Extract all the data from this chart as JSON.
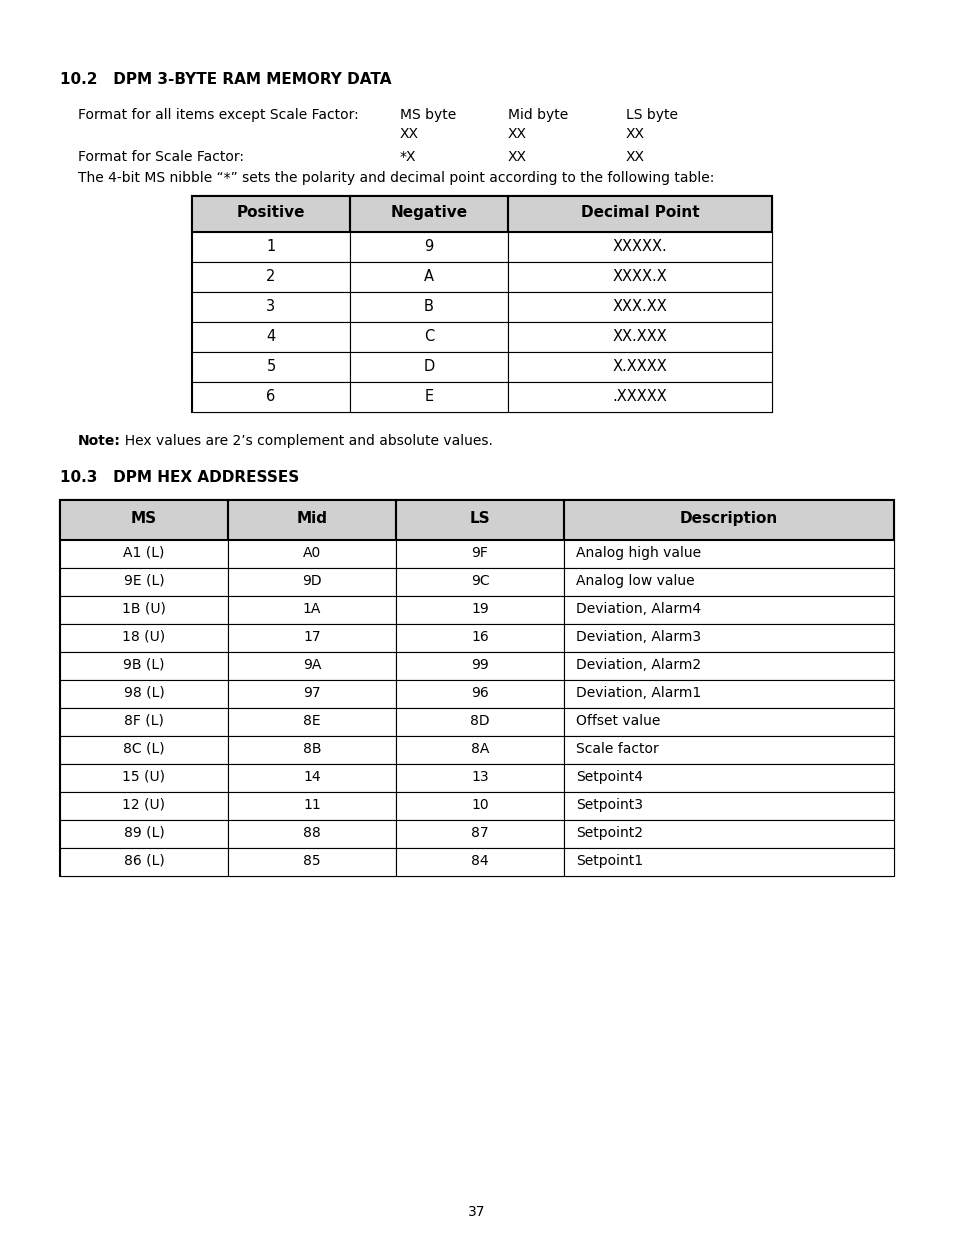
{
  "page_number": "37",
  "section1_title": "10.2   DPM 3-BYTE RAM MEMORY DATA",
  "format_line1_label": "Format for all items except Scale Factor:",
  "format_line1_col1": "MS byte",
  "format_line1_col2": "Mid byte",
  "format_line1_col3": "LS byte",
  "format_line2_col1": "XX",
  "format_line2_col2": "XX",
  "format_line2_col3": "XX",
  "format_scale_label": "Format for Scale Factor:",
  "format_scale_col1": "*X",
  "format_scale_col2": "XX",
  "format_scale_col3": "XX",
  "nibble_note": "The 4-bit MS nibble “*” sets the polarity and decimal point according to the following table:",
  "table1_headers": [
    "Positive",
    "Negative",
    "Decimal Point"
  ],
  "table1_rows": [
    [
      "1",
      "9",
      "XXXXX."
    ],
    [
      "2",
      "A",
      "XXXX.X"
    ],
    [
      "3",
      "B",
      "XXX.XX"
    ],
    [
      "4",
      "C",
      "XX.XXX"
    ],
    [
      "5",
      "D",
      "X.XXXX"
    ],
    [
      "6",
      "E",
      ".XXXXX"
    ]
  ],
  "note_bold": "Note:",
  "note_rest": "  Hex values are 2’s complement and absolute values.",
  "section2_title": "10.3   DPM HEX ADDRESSES",
  "table2_headers": [
    "MS",
    "Mid",
    "LS",
    "Description"
  ],
  "table2_rows": [
    [
      "A1 (L)",
      "A0",
      "9F",
      "Analog high value"
    ],
    [
      "9E (L)",
      "9D",
      "9C",
      "Analog low value"
    ],
    [
      "1B (U)",
      "1A",
      "19",
      "Deviation, Alarm4"
    ],
    [
      "18 (U)",
      "17",
      "16",
      "Deviation, Alarm3"
    ],
    [
      "9B (L)",
      "9A",
      "99",
      "Deviation, Alarm2"
    ],
    [
      "98 (L)",
      "97",
      "96",
      "Deviation, Alarm1"
    ],
    [
      "8F (L)",
      "8E",
      "8D",
      "Offset value"
    ],
    [
      "8C (L)",
      "8B",
      "8A",
      "Scale factor"
    ],
    [
      "15 (U)",
      "14",
      "13",
      "Setpoint4"
    ],
    [
      "12 (U)",
      "11",
      "10",
      "Setpoint3"
    ],
    [
      "89 (L)",
      "88",
      "87",
      "Setpoint2"
    ],
    [
      "86 (L)",
      "85",
      "84",
      "Setpoint1"
    ]
  ],
  "background_color": "#ffffff",
  "header_bg_color": "#d0d0d0",
  "table_border_color": "#000000",
  "text_color": "#000000"
}
